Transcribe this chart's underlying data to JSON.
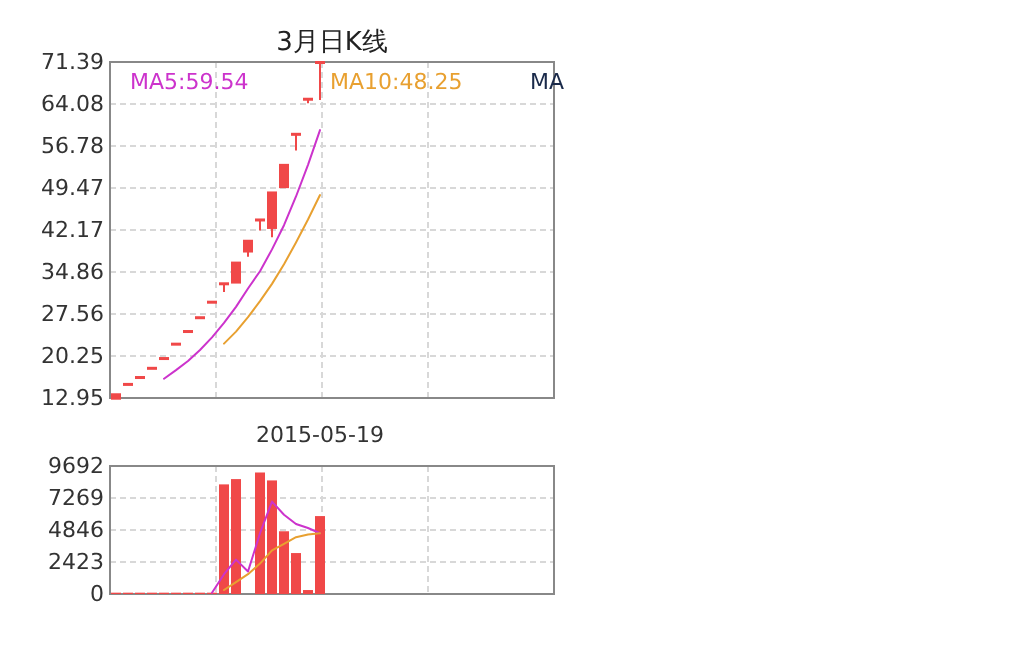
{
  "chart_data": [
    {
      "type": "candlestick",
      "title": "3月日K线",
      "categories": [
        null,
        null,
        null,
        null,
        null,
        null,
        null,
        null,
        null,
        null,
        null,
        null,
        null,
        null,
        null,
        null,
        null,
        null
      ],
      "ylim": [
        12.95,
        71.39
      ],
      "yticks": [
        12.95,
        20.25,
        27.56,
        34.86,
        42.17,
        49.47,
        56.78,
        64.08,
        71.39
      ],
      "color": "#f04848",
      "ohlc": [
        [
          13.0,
          13.6,
          13.0,
          13.6
        ],
        [
          15.4,
          15.4,
          15.4,
          15.4
        ],
        [
          16.6,
          16.6,
          16.6,
          16.6
        ],
        [
          18.2,
          18.2,
          18.2,
          18.2
        ],
        [
          19.9,
          19.9,
          19.9,
          19.9
        ],
        [
          22.4,
          22.4,
          22.4,
          22.4
        ],
        [
          24.6,
          24.6,
          24.6,
          24.6
        ],
        [
          27.0,
          27.0,
          27.0,
          27.0
        ],
        [
          29.7,
          29.7,
          29.7,
          29.7
        ],
        [
          32.9,
          32.9,
          31.4,
          32.9
        ],
        [
          33.2,
          36.5,
          33.2,
          36.5
        ],
        [
          38.6,
          40.3,
          37.5,
          40.3
        ],
        [
          44.0,
          44.0,
          42.1,
          44.0
        ],
        [
          42.7,
          48.7,
          40.9,
          48.7
        ],
        [
          49.8,
          53.5,
          49.8,
          53.5
        ],
        [
          58.9,
          58.9,
          56.0,
          58.9
        ],
        [
          65.0,
          65.0,
          64.2,
          65.0
        ],
        [
          71.39,
          71.39,
          64.8,
          71.39
        ]
      ],
      "grid": true
    },
    {
      "type": "line",
      "categories": [
        null,
        null,
        null,
        null,
        null,
        null,
        null,
        null,
        null,
        null,
        null,
        null,
        null,
        null,
        null,
        null,
        null,
        null
      ],
      "ylim": [
        12.95,
        71.39
      ],
      "yticks": [
        12.95,
        20.25,
        27.56,
        34.86,
        42.17,
        49.47,
        56.78,
        64.08,
        71.39
      ],
      "tick_labels": false,
      "series": [
        {
          "name": "MA5:59.54",
          "color": "#cc33cc",
          "values": [
            null,
            null,
            null,
            null,
            16.3,
            17.8,
            19.4,
            21.3,
            23.5,
            26.0,
            28.8,
            32.0,
            35.0,
            38.8,
            43.0,
            48.0,
            53.5,
            59.54
          ]
        },
        {
          "name": "MA10:48.25",
          "color": "#e8a030",
          "values": [
            null,
            null,
            null,
            null,
            null,
            null,
            null,
            null,
            null,
            22.4,
            24.5,
            27.0,
            29.8,
            32.8,
            36.2,
            40.0,
            44.0,
            48.25
          ]
        }
      ],
      "annotations": [
        "MA"
      ],
      "legend": "top"
    },
    {
      "type": "bar",
      "categories": [
        null,
        null,
        null,
        null,
        null,
        null,
        null,
        null,
        null,
        null,
        null,
        null,
        null,
        null,
        null,
        null,
        null,
        null
      ],
      "ylim": [
        0,
        9692
      ],
      "yticks": [
        0,
        2423,
        4846,
        7269,
        9692
      ],
      "color": "#f04848",
      "values": [
        100,
        100,
        100,
        100,
        100,
        100,
        100,
        100,
        100,
        8300,
        8700,
        0,
        9200,
        8600,
        4750,
        3100,
        300,
        5900
      ],
      "annotations": [
        "2015-05-19"
      ],
      "grid": true
    },
    {
      "type": "line",
      "categories": [
        null,
        null,
        null,
        null,
        null,
        null,
        null,
        null,
        null,
        null,
        null,
        null,
        null,
        null,
        null,
        null,
        null,
        null
      ],
      "ylim": [
        0,
        9692
      ],
      "yticks": [
        0,
        2423,
        4846,
        7269,
        9692
      ],
      "tick_labels": false,
      "series": [
        {
          "color": "#cc33cc",
          "values": [
            null,
            null,
            null,
            null,
            null,
            null,
            null,
            null,
            100,
            1500,
            2600,
            1700,
            4600,
            7000,
            6000,
            5300,
            5000,
            4600
          ]
        },
        {
          "color": "#e8a030",
          "values": [
            null,
            null,
            null,
            null,
            null,
            null,
            null,
            null,
            null,
            300,
            900,
            1500,
            2300,
            3300,
            3800,
            4300,
            4500,
            4600
          ]
        }
      ]
    }
  ]
}
